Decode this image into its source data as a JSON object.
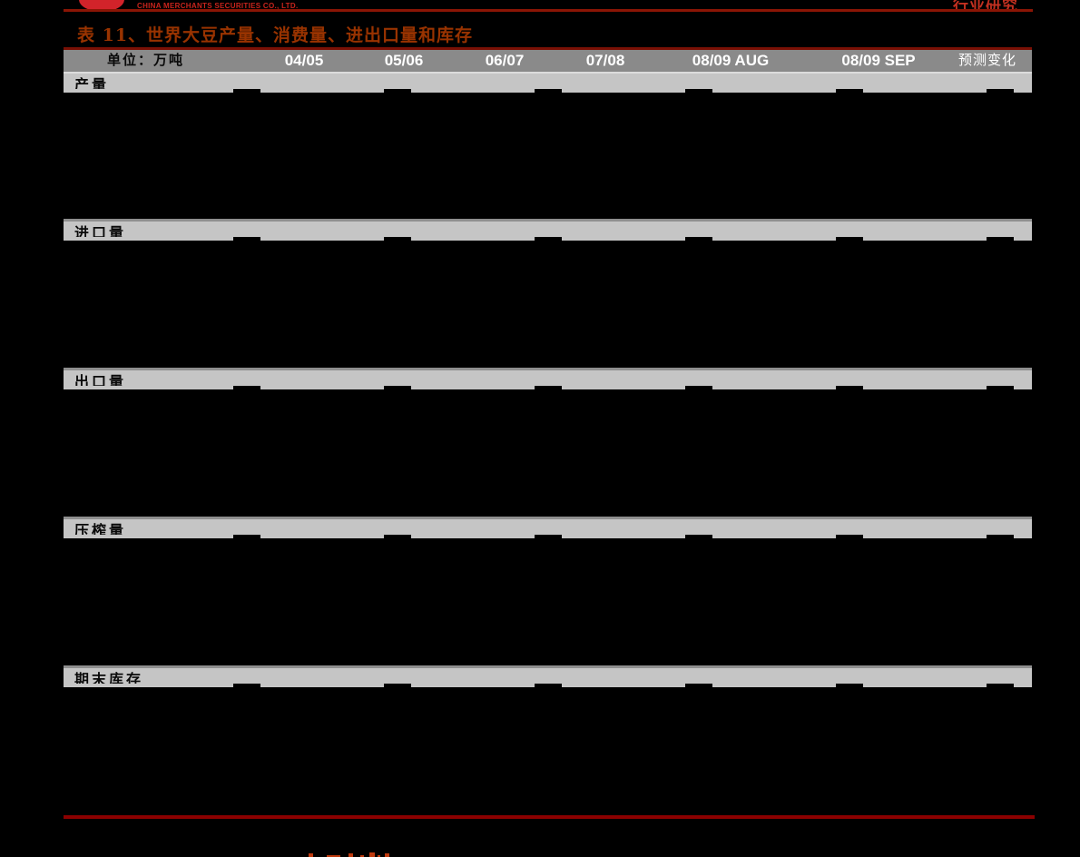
{
  "brand": {
    "company_en": "CHINA MERCHANTS SECURITIES CO., LTD.",
    "header_right_label": "行业研究"
  },
  "table": {
    "title": "表 11、世界大豆产量、消费量、进出口量和库存",
    "unit_label": "单位：万吨",
    "columns": [
      "04/05",
      "05/06",
      "06/07",
      "07/08",
      "08/09 AUG",
      "08/09 SEP",
      "预测变化"
    ],
    "sections": [
      {
        "label": "产量"
      },
      {
        "label": "进口量"
      },
      {
        "label": "出口量"
      },
      {
        "label": "压榨量"
      },
      {
        "label": "期末库存"
      }
    ]
  },
  "colors": {
    "page_bg": "#000000",
    "logo_red": "#D2232A",
    "brand_text_red": "#C9241C",
    "title_red": "#993300",
    "rule_top": "#8B1505",
    "rule_mid": "#7A1005",
    "rule_bottom": "#8B0000",
    "header_row_bg": "#8A8A8A",
    "section_band_bg": "#C5C5C5",
    "header_text": "#FFFFFF"
  }
}
